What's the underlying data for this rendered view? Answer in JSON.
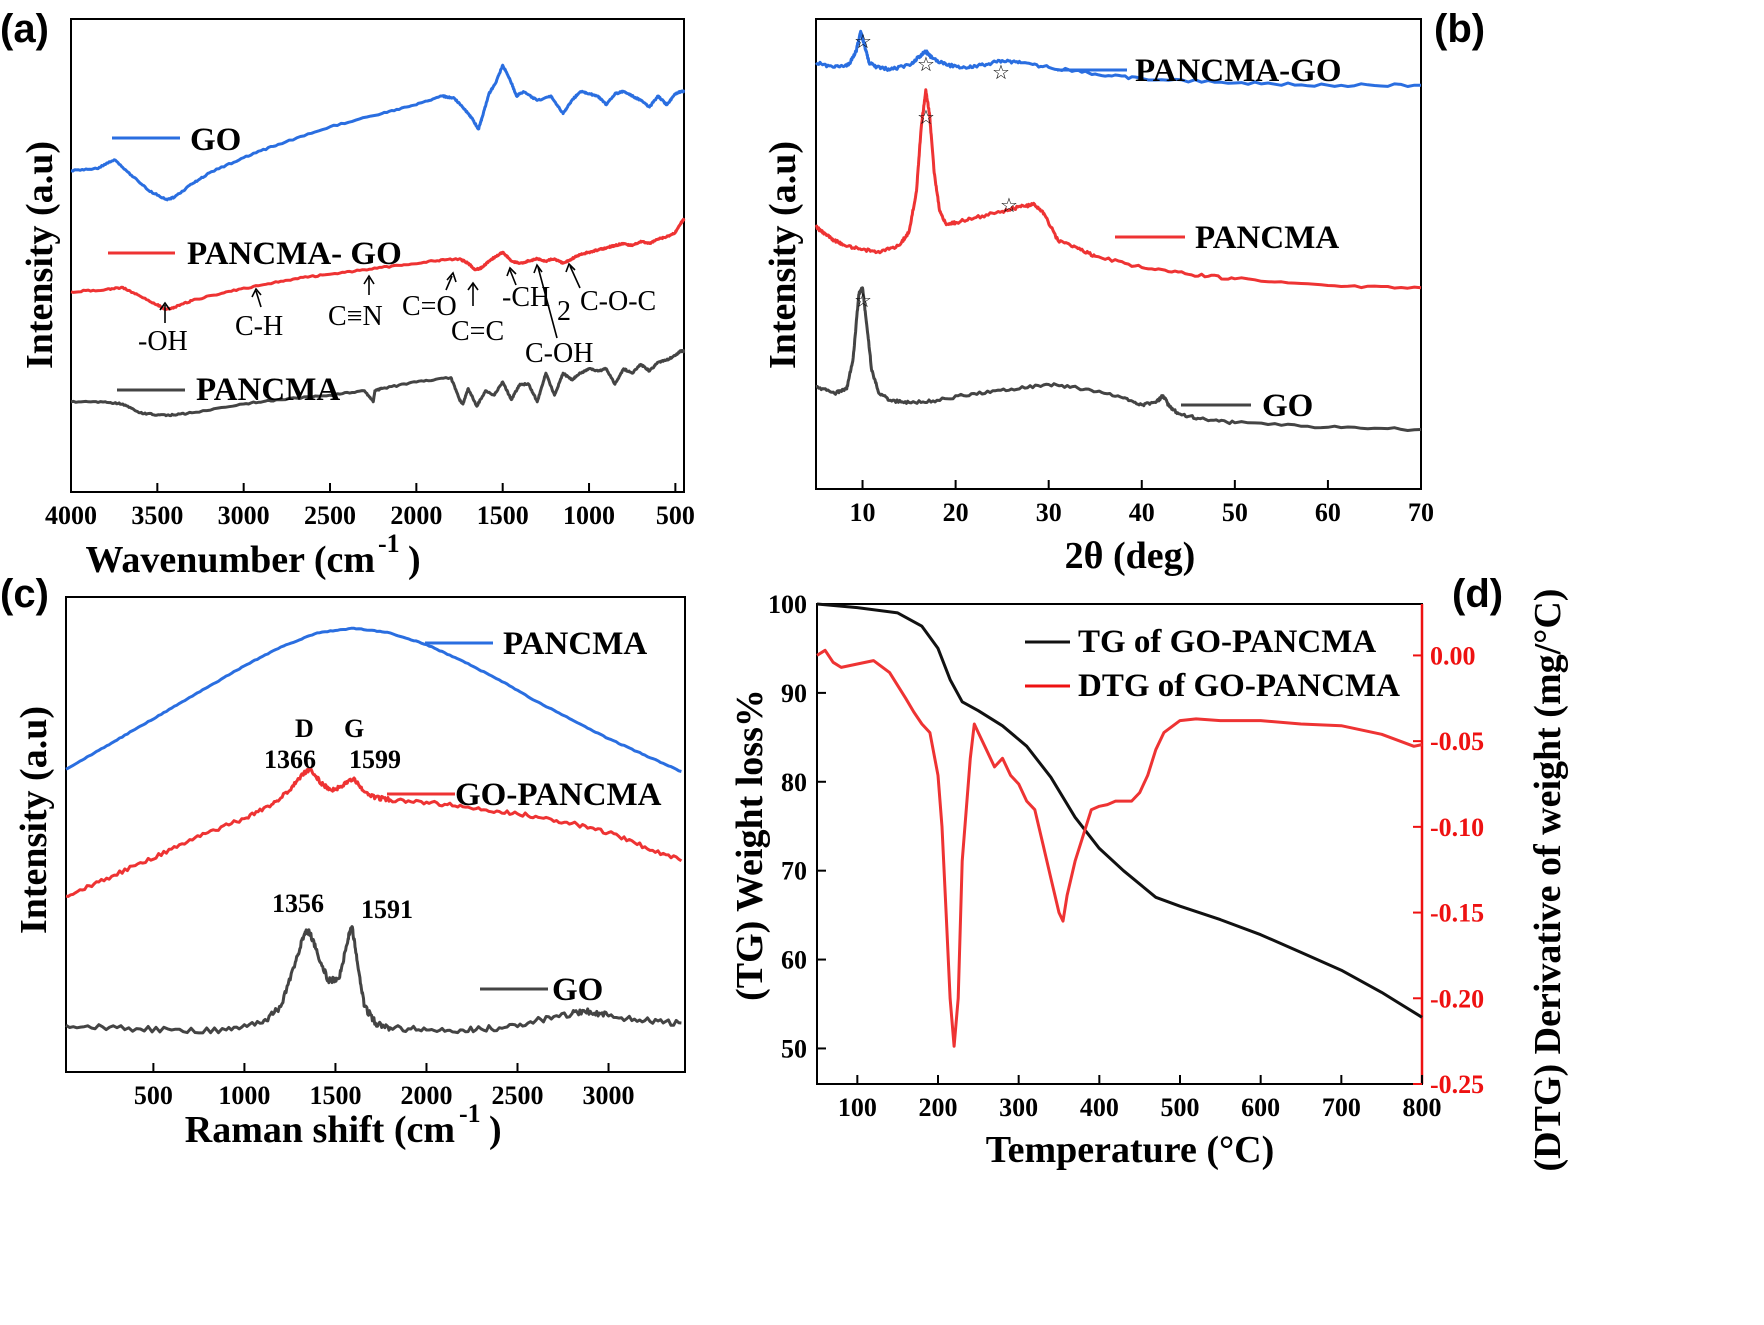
{
  "colors": {
    "blue": "#2a6ee0",
    "red": "#ee3333",
    "gray": "#444444",
    "black": "#111111",
    "dtg_axis": "#ee1111"
  },
  "panels": {
    "a": {
      "label": "(a)",
      "ylabel": "Intensity (a.u)",
      "xlabel": "Wavenumber (cm",
      "xlabel_sup": "-1",
      "xlabel_close": ")",
      "legend": [
        "GO",
        "PANCMA- GO",
        "PANCMA"
      ],
      "annotations": [
        "-OH",
        "C-H",
        "C≡N",
        "C=O",
        "C=C",
        "-CH",
        "2",
        "C-O-C",
        "C-OH"
      ]
    },
    "b": {
      "label": "(b)",
      "ylabel": "Intensity (a.u)",
      "xlabel": "2θ (deg)",
      "legend": [
        "PANCMA-GO",
        "PANCMA",
        "GO"
      ],
      "marker": "☆"
    },
    "c": {
      "label": "(c)",
      "ylabel": "Intensity (a.u)",
      "xlabel": "Raman shift (cm",
      "xlabel_sup": "-1",
      "xlabel_close": ")",
      "legend": [
        "PANCMA",
        "GO-PANCMA",
        "GO"
      ],
      "peaks": [
        "D",
        "G",
        "1366",
        "1599",
        "1356",
        "1591"
      ]
    },
    "d": {
      "label": "(d)",
      "ylabel_left": "(TG) Weight loss%",
      "ylabel_right": "(DTG) Derivative of weight (mg/°C)",
      "xlabel": "Temperature (°C)",
      "legend": [
        "TG of GO-PANCMA",
        "DTG of GO-PANCMA"
      ]
    }
  },
  "chart_data": [
    {
      "type": "line",
      "panel": "a",
      "title": "",
      "xlabel": "Wavenumber (cm-1)",
      "ylabel": "Intensity (a.u)",
      "xlim": [
        4000,
        450
      ],
      "ylim": [
        0,
        10
      ],
      "xticks": [
        4000,
        3500,
        3000,
        2500,
        2000,
        1500,
        1000,
        500
      ],
      "series": [
        {
          "name": "GO",
          "color": "blue",
          "x": [
            4000,
            3850,
            3750,
            3650,
            3550,
            3450,
            3400,
            3300,
            3200,
            3000,
            2800,
            2500,
            2200,
            2000,
            1850,
            1780,
            1720,
            1680,
            1640,
            1620,
            1580,
            1540,
            1500,
            1460,
            1420,
            1380,
            1300,
            1220,
            1150,
            1100,
            1050,
            1000,
            950,
            900,
            850,
            800,
            750,
            700,
            650,
            600,
            550,
            500,
            470,
            450
          ],
          "y": [
            6.8,
            6.85,
            7.05,
            6.7,
            6.35,
            6.15,
            6.2,
            6.5,
            6.75,
            7.1,
            7.4,
            7.8,
            8.1,
            8.3,
            8.5,
            8.45,
            8.2,
            8.0,
            7.75,
            8.0,
            8.55,
            8.8,
            9.2,
            8.9,
            8.5,
            8.6,
            8.4,
            8.5,
            8.1,
            8.4,
            8.6,
            8.55,
            8.5,
            8.3,
            8.55,
            8.6,
            8.5,
            8.4,
            8.25,
            8.5,
            8.3,
            8.55,
            8.6,
            8.6
          ]
        },
        {
          "name": "PANCMA- GO",
          "color": "red",
          "x": [
            4000,
            3800,
            3700,
            3600,
            3500,
            3450,
            3400,
            3300,
            3100,
            2900,
            2700,
            2500,
            2300,
            2100,
            1900,
            1750,
            1700,
            1660,
            1620,
            1580,
            1540,
            1500,
            1450,
            1400,
            1350,
            1300,
            1250,
            1200,
            1150,
            1100,
            1050,
            1000,
            950,
            900,
            850,
            800,
            750,
            700,
            650,
            600,
            550,
            500,
            470,
            450
          ],
          "y": [
            4.05,
            4.1,
            4.15,
            3.95,
            3.75,
            3.65,
            3.7,
            3.85,
            4.05,
            4.2,
            4.35,
            4.45,
            4.55,
            4.65,
            4.75,
            4.8,
            4.7,
            4.55,
            4.6,
            4.75,
            4.85,
            4.95,
            4.75,
            4.7,
            4.75,
            4.8,
            4.75,
            4.8,
            4.7,
            4.8,
            4.9,
            4.95,
            5.0,
            5.05,
            5.1,
            5.15,
            5.1,
            5.2,
            5.15,
            5.25,
            5.3,
            5.4,
            5.6,
            5.7
          ]
        },
        {
          "name": "PANCMA",
          "color": "gray",
          "x": [
            4000,
            3800,
            3700,
            3600,
            3500,
            3400,
            3300,
            3000,
            2800,
            2500,
            2300,
            2250,
            2240,
            2200,
            2000,
            1800,
            1750,
            1730,
            1700,
            1650,
            1600,
            1550,
            1500,
            1450,
            1400,
            1350,
            1300,
            1250,
            1200,
            1150,
            1100,
            1050,
            1000,
            950,
            900,
            850,
            800,
            750,
            700,
            650,
            600,
            550,
            500,
            470,
            450
          ],
          "y": [
            1.55,
            1.55,
            1.5,
            1.3,
            1.25,
            1.25,
            1.3,
            1.5,
            1.6,
            1.7,
            1.8,
            1.55,
            1.8,
            1.85,
            2.0,
            2.1,
            1.6,
            1.5,
            1.85,
            1.45,
            1.8,
            1.7,
            2.0,
            1.6,
            1.95,
            1.95,
            1.55,
            2.2,
            1.7,
            2.2,
            2.05,
            2.2,
            2.3,
            2.25,
            2.3,
            1.95,
            2.3,
            2.2,
            2.4,
            2.25,
            2.45,
            2.5,
            2.6,
            2.7,
            2.7
          ]
        }
      ]
    },
    {
      "type": "line",
      "panel": "b",
      "title": "",
      "xlabel": "2θ (deg)",
      "ylabel": "Intensity (a.u)",
      "xlim": [
        5,
        70
      ],
      "ylim": [
        0,
        10
      ],
      "xticks": [
        10,
        20,
        30,
        40,
        50,
        60,
        70
      ],
      "series": [
        {
          "name": "PANCMA-GO",
          "color": "blue",
          "x": [
            5,
            7,
            8.5,
            9.3,
            9.8,
            10.2,
            10.7,
            11.5,
            13,
            15,
            16.2,
            16.8,
            17.5,
            19,
            21,
            23,
            25,
            27,
            30,
            35,
            40,
            50,
            60,
            70
          ],
          "y": [
            9.05,
            8.95,
            9.0,
            9.3,
            9.75,
            9.45,
            9.05,
            8.95,
            8.9,
            9.0,
            9.2,
            9.3,
            9.15,
            9.0,
            8.95,
            9.0,
            9.1,
            9.05,
            8.95,
            8.8,
            8.7,
            8.6,
            8.55,
            8.55
          ]
        },
        {
          "name": "PANCMA",
          "color": "red",
          "x": [
            5,
            6,
            7,
            8,
            10,
            12,
            14,
            15,
            15.8,
            16.3,
            16.8,
            17.2,
            17.7,
            18.3,
            19,
            20,
            22,
            25,
            27,
            28.5,
            29.5,
            31,
            33,
            35,
            40,
            45,
            50,
            60,
            70
          ],
          "y": [
            5.4,
            5.25,
            5.1,
            5.0,
            4.9,
            4.85,
            5.0,
            5.3,
            6.2,
            7.6,
            8.45,
            7.9,
            6.6,
            5.75,
            5.45,
            5.5,
            5.6,
            5.75,
            5.85,
            5.9,
            5.7,
            5.1,
            4.95,
            4.75,
            4.5,
            4.35,
            4.25,
            4.1,
            4.05
          ]
        },
        {
          "name": "GO",
          "color": "gray",
          "x": [
            5,
            7,
            8.3,
            9.0,
            9.6,
            10.0,
            10.4,
            11.0,
            11.8,
            13,
            15,
            18,
            22,
            26,
            30,
            34,
            38,
            40,
            41.5,
            42.3,
            43,
            44,
            46,
            50,
            60,
            70
          ],
          "y": [
            1.85,
            1.7,
            1.8,
            2.5,
            3.9,
            4.05,
            3.3,
            2.2,
            1.7,
            1.55,
            1.5,
            1.55,
            1.7,
            1.8,
            1.9,
            1.8,
            1.6,
            1.45,
            1.5,
            1.65,
            1.4,
            1.25,
            1.15,
            1.05,
            0.95,
            0.9
          ]
        }
      ]
    },
    {
      "type": "line",
      "panel": "c",
      "title": "",
      "xlabel": "Raman shift (cm-1)",
      "ylabel": "Intensity (a.u)",
      "xlim": [
        20,
        3420
      ],
      "ylim": [
        0,
        10
      ],
      "xticks": [
        500,
        1000,
        1500,
        2000,
        2500,
        3000
      ],
      "series": [
        {
          "name": "PANCMA",
          "color": "blue",
          "x": [
            20,
            200,
            400,
            600,
            800,
            1000,
            1200,
            1400,
            1600,
            1800,
            2000,
            2200,
            2400,
            2600,
            2800,
            3000,
            3200,
            3400
          ],
          "y": [
            6.4,
            6.8,
            7.25,
            7.7,
            8.15,
            8.6,
            9.0,
            9.3,
            9.4,
            9.3,
            9.05,
            8.7,
            8.3,
            7.85,
            7.45,
            7.05,
            6.7,
            6.35
          ]
        },
        {
          "name": "GO-PANCMA",
          "color": "red",
          "x": [
            20,
            200,
            400,
            600,
            800,
            1000,
            1150,
            1250,
            1320,
            1366,
            1420,
            1480,
            1540,
            1599,
            1650,
            1720,
            1800,
            2000,
            2200,
            2400,
            2600,
            2800,
            3000,
            3200,
            3400
          ],
          "y": [
            3.7,
            4.0,
            4.35,
            4.7,
            5.05,
            5.35,
            5.65,
            5.95,
            6.3,
            6.4,
            6.1,
            5.95,
            6.05,
            6.2,
            5.95,
            5.8,
            5.75,
            5.7,
            5.6,
            5.5,
            5.4,
            5.25,
            5.05,
            4.75,
            4.45
          ]
        },
        {
          "name": "GO",
          "color": "gray",
          "x": [
            20,
            300,
            600,
            900,
            1100,
            1200,
            1280,
            1330,
            1356,
            1400,
            1460,
            1520,
            1570,
            1591,
            1620,
            1660,
            1720,
            1800,
            2000,
            2200,
            2400,
            2600,
            2800,
            2900,
            3000,
            3200,
            3400
          ],
          "y": [
            0.95,
            0.9,
            0.85,
            0.85,
            1.0,
            1.35,
            2.3,
            2.9,
            2.95,
            2.5,
            1.9,
            1.95,
            2.8,
            3.05,
            2.3,
            1.35,
            1.0,
            0.9,
            0.85,
            0.85,
            0.9,
            1.05,
            1.2,
            1.25,
            1.15,
            1.05,
            1.0
          ]
        }
      ]
    },
    {
      "type": "line",
      "panel": "d",
      "title": "",
      "xlabel": "Temperature (°C)",
      "ylabel": "(TG) Weight loss%",
      "ylabel_right": "(DTG) Derivative of weight (mg/°C)",
      "xlim": [
        50,
        800
      ],
      "ylim_left": [
        46,
        100
      ],
      "ylim_right": [
        -0.25,
        0.03
      ],
      "xticks": [
        100,
        200,
        300,
        400,
        500,
        600,
        700,
        800
      ],
      "yticks_left": [
        50,
        60,
        70,
        80,
        90,
        100
      ],
      "yticks_right": [
        0.0,
        -0.05,
        -0.1,
        -0.15,
        -0.2,
        -0.25
      ],
      "series": [
        {
          "name": "TG of GO-PANCMA",
          "axis": "left",
          "color": "black",
          "x": [
            50,
            100,
            150,
            180,
            200,
            215,
            230,
            250,
            280,
            310,
            340,
            370,
            400,
            430,
            470,
            500,
            550,
            600,
            650,
            700,
            750,
            800
          ],
          "y": [
            100,
            99.6,
            99,
            97.5,
            95,
            91.5,
            89,
            88,
            86.3,
            84,
            80.5,
            76,
            72.5,
            70,
            67,
            66,
            64.5,
            62.8,
            60.8,
            58.8,
            56.3,
            53.5
          ]
        },
        {
          "name": "DTG of GO-PANCMA",
          "axis": "right",
          "color": "red",
          "x": [
            50,
            60,
            70,
            80,
            100,
            120,
            140,
            160,
            170,
            180,
            190,
            200,
            205,
            210,
            215,
            220,
            225,
            230,
            240,
            245,
            250,
            260,
            270,
            280,
            290,
            300,
            310,
            320,
            330,
            340,
            350,
            355,
            360,
            370,
            380,
            390,
            400,
            410,
            420,
            440,
            450,
            460,
            470,
            480,
            500,
            520,
            550,
            600,
            650,
            700,
            750,
            790,
            800
          ],
          "y": [
            0.0,
            0.003,
            -0.004,
            -0.007,
            -0.005,
            -0.003,
            -0.01,
            -0.025,
            -0.033,
            -0.04,
            -0.045,
            -0.07,
            -0.1,
            -0.15,
            -0.2,
            -0.228,
            -0.2,
            -0.12,
            -0.06,
            -0.04,
            -0.045,
            -0.055,
            -0.065,
            -0.06,
            -0.07,
            -0.075,
            -0.085,
            -0.09,
            -0.11,
            -0.13,
            -0.15,
            -0.155,
            -0.14,
            -0.12,
            -0.105,
            -0.09,
            -0.088,
            -0.087,
            -0.085,
            -0.085,
            -0.08,
            -0.07,
            -0.055,
            -0.045,
            -0.038,
            -0.037,
            -0.038,
            -0.038,
            -0.04,
            -0.041,
            -0.046,
            -0.053,
            -0.052
          ]
        }
      ]
    }
  ]
}
